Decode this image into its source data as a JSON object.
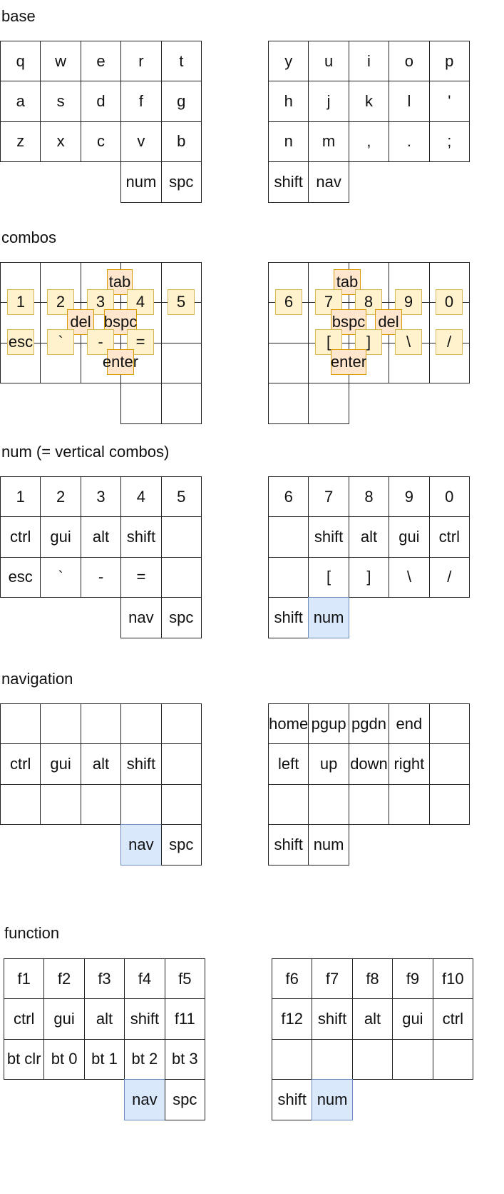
{
  "layers": [
    {
      "title": "base",
      "left": [
        [
          "q",
          "w",
          "e",
          "r",
          "t"
        ],
        [
          "a",
          "s",
          "d",
          "f",
          "g"
        ],
        [
          "z",
          "x",
          "c",
          "v",
          "b"
        ],
        [
          "",
          "",
          "",
          "num",
          "spc"
        ]
      ],
      "right": [
        [
          "y",
          "u",
          "i",
          "o",
          "p"
        ],
        [
          "h",
          "j",
          "k",
          "l",
          "'"
        ],
        [
          "n",
          "m",
          ",",
          ".",
          ";"
        ],
        [
          "shift",
          "nav",
          "",
          "",
          ""
        ]
      ],
      "highlight": []
    },
    {
      "title": "combos",
      "left": [
        [
          "",
          "",
          "",
          "",
          ""
        ],
        [
          "",
          "",
          "",
          "",
          ""
        ],
        [
          "",
          "",
          "",
          "",
          ""
        ],
        [
          "",
          "",
          "",
          "",
          ""
        ]
      ],
      "right": [
        [
          "",
          "",
          "",
          "",
          ""
        ],
        [
          "",
          "",
          "",
          "",
          ""
        ],
        [
          "",
          "",
          "",
          "",
          ""
        ],
        [
          "",
          "",
          "",
          "",
          ""
        ]
      ],
      "highlight": []
    },
    {
      "title": "num (= vertical combos)",
      "left": [
        [
          "1",
          "2",
          "3",
          "4",
          "5"
        ],
        [
          "ctrl",
          "gui",
          "alt",
          "shift",
          ""
        ],
        [
          "esc",
          "`",
          "-",
          "=",
          ""
        ],
        [
          "",
          "",
          "",
          "nav",
          "spc"
        ]
      ],
      "right": [
        [
          "6",
          "7",
          "8",
          "9",
          "0"
        ],
        [
          "",
          "shift",
          "alt",
          "gui",
          "ctrl"
        ],
        [
          "",
          "[",
          "]",
          "\\",
          "/"
        ],
        [
          "shift",
          "num",
          "",
          "",
          ""
        ]
      ],
      "highlight": [
        [
          "right",
          3,
          1
        ]
      ]
    },
    {
      "title": "navigation",
      "left": [
        [
          "",
          "",
          "",
          "",
          ""
        ],
        [
          "ctrl",
          "gui",
          "alt",
          "shift",
          ""
        ],
        [
          "",
          "",
          "",
          "",
          ""
        ],
        [
          "",
          "",
          "",
          "nav",
          "spc"
        ]
      ],
      "right": [
        [
          "home",
          "pgup",
          "pgdn",
          "end",
          ""
        ],
        [
          "left",
          "up",
          "down",
          "right",
          ""
        ],
        [
          "",
          "",
          "",
          "",
          ""
        ],
        [
          "shift",
          "num",
          "",
          "",
          ""
        ]
      ],
      "highlight": [
        [
          "left",
          3,
          3
        ]
      ]
    },
    {
      "title": "function",
      "left": [
        [
          "f1",
          "f2",
          "f3",
          "f4",
          "f5"
        ],
        [
          "ctrl",
          "gui",
          "alt",
          "shift",
          "f11"
        ],
        [
          "bt clr",
          "bt 0",
          "bt 1",
          "bt 2",
          "bt 3"
        ],
        [
          "",
          "",
          "",
          "nav",
          "spc"
        ]
      ],
      "right": [
        [
          "f6",
          "f7",
          "f8",
          "f9",
          "f10"
        ],
        [
          "f12",
          "shift",
          "alt",
          "gui",
          "ctrl"
        ],
        [
          "",
          "",
          "",
          "",
          ""
        ],
        [
          "shift",
          "num",
          "",
          "",
          ""
        ]
      ],
      "highlight": [
        [
          "left",
          3,
          3
        ],
        [
          "right",
          3,
          1
        ]
      ]
    }
  ],
  "combos": {
    "left": [
      "tab",
      "1",
      "2",
      "3",
      "4",
      "5",
      "del",
      "bspc",
      "esc",
      "`",
      "-",
      "=",
      "enter"
    ],
    "right": [
      "tab",
      "6",
      "7",
      "8",
      "9",
      "0",
      "bspc",
      "del",
      "[",
      "]",
      "\\",
      "/",
      "enter"
    ]
  }
}
